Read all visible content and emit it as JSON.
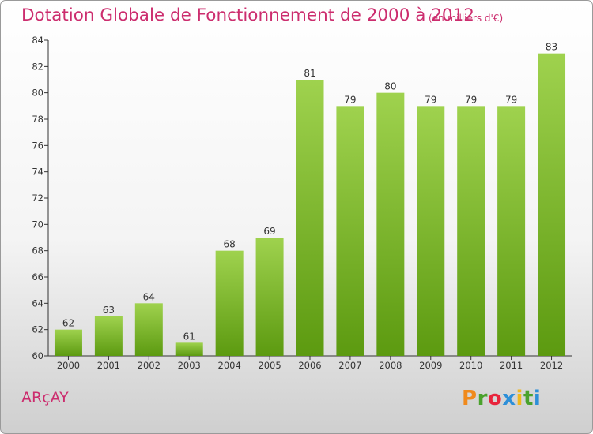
{
  "header": {
    "title": "Dotation Globale de Fonctionnement de 2000 à 2012",
    "subtitle": "(en milliers d'€)"
  },
  "footer": {
    "commune": "ARçAY",
    "logo": [
      "P",
      "r",
      "o",
      "x",
      "i",
      "t",
      "i"
    ]
  },
  "colors": {
    "title": "#cc2d6e",
    "bar_top": "#9fd24e",
    "bar_bottom": "#5c9a10",
    "logo": [
      "#f08a1c",
      "#4aa22c",
      "#e8243c",
      "#2d8fd8",
      "#f0b81c",
      "#4aa22c",
      "#2d8fd8"
    ]
  },
  "chart_data": {
    "type": "bar",
    "title": "Dotation Globale de Fonctionnement de 2000 à 2012",
    "subtitle": "(en milliers d'€)",
    "categories": [
      "2000",
      "2001",
      "2002",
      "2003",
      "2004",
      "2005",
      "2006",
      "2007",
      "2008",
      "2009",
      "2010",
      "2011",
      "2012"
    ],
    "values": [
      62,
      63,
      64,
      61,
      68,
      69,
      81,
      79,
      80,
      79,
      79,
      79,
      83
    ],
    "xlabel": "",
    "ylabel": "",
    "ylim": [
      60,
      84
    ],
    "yticks": [
      60,
      62,
      64,
      66,
      68,
      70,
      72,
      74,
      76,
      78,
      80,
      82,
      84
    ],
    "grid": false,
    "legend": "none"
  }
}
